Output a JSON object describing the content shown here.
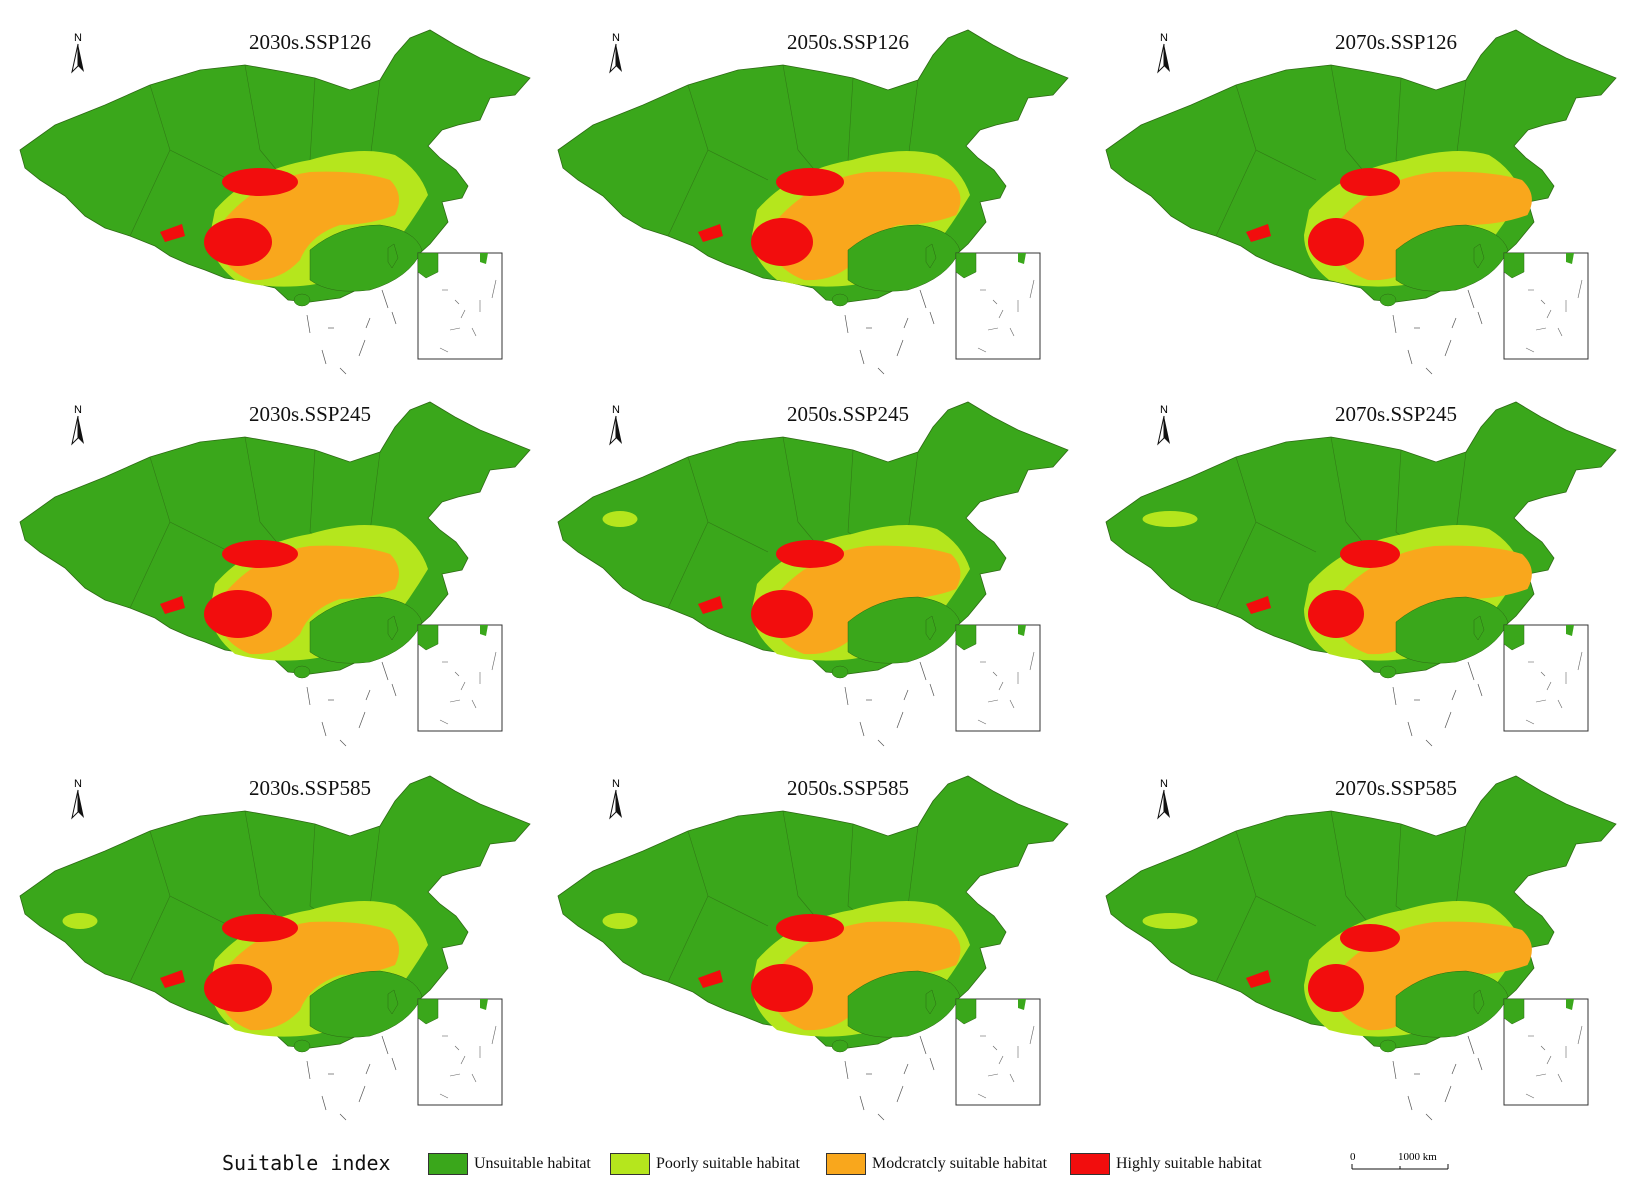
{
  "colors": {
    "unsuitable": "#3aa71b",
    "poor": "#b5e61d",
    "moderate": "#f9a71c",
    "high": "#f20d0d",
    "border": "#2d6a14"
  },
  "north_label": "N",
  "panels": [
    {
      "title": "2030s.SSP126"
    },
    {
      "title": "2050s.SSP126"
    },
    {
      "title": "2070s.SSP126"
    },
    {
      "title": "2030s.SSP245"
    },
    {
      "title": "2050s.SSP245"
    },
    {
      "title": "2070s.SSP245"
    },
    {
      "title": "2030s.SSP585"
    },
    {
      "title": "2050s.SSP585"
    },
    {
      "title": "2070s.SSP585"
    }
  ],
  "legend": {
    "title": "Suitable index",
    "items": [
      {
        "label": "Unsuitable habitat",
        "color": "#3aa71b"
      },
      {
        "label": "Poorly suitable habitat",
        "color": "#b5e61d"
      },
      {
        "label": "Modcratcly suitable habitat",
        "color": "#f9a71c"
      },
      {
        "label": "Highly suitable habitat",
        "color": "#f20d0d"
      }
    ]
  },
  "scale": {
    "zero": "0",
    "label": "1000 km"
  }
}
